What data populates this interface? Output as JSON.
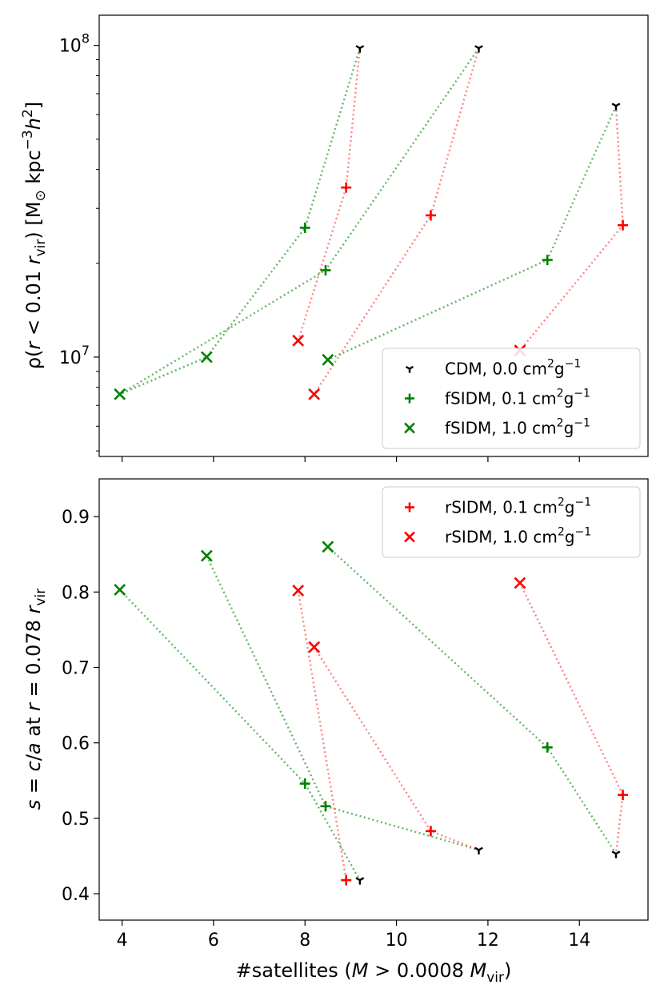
{
  "chart_data": [
    {
      "type": "line",
      "panel": "top",
      "ylabel_parts": {
        "p1": "ρ(",
        "r_var": "r",
        "p2": " < 0.01 ",
        "r2": "r",
        "sub": "vir",
        "p3": ") [M",
        "sun": "⊙",
        "p4": " kpc",
        "exp1": "−3",
        "h": "h",
        "exp2": "2",
        "p5": "]"
      },
      "yscale": "log",
      "ylim": [
        4800000,
        125000000
      ],
      "xlim": [
        3.5,
        15.5
      ],
      "yticks": [
        {
          "value": 10000000,
          "base": "10",
          "exp": "7"
        },
        {
          "value": 100000000,
          "base": "10",
          "exp": "8"
        }
      ],
      "lines": [
        {
          "color": "#2ca02c",
          "points": [
            [
              9.2,
              98000000
            ],
            [
              8.0,
              26000000
            ],
            [
              5.85,
              10000000
            ],
            [
              3.95,
              7600000
            ]
          ]
        },
        {
          "color": "#2ca02c",
          "points": [
            [
              11.8,
              98000000
            ],
            [
              8.45,
              19000000
            ],
            [
              3.95,
              7600000
            ]
          ]
        },
        {
          "color": "#2ca02c",
          "points": [
            [
              14.8,
              64000000
            ],
            [
              13.3,
              20500000
            ],
            [
              8.5,
              9800000
            ]
          ]
        },
        {
          "color": "#ff5a5a",
          "points": [
            [
              9.2,
              98000000
            ],
            [
              8.9,
              35000000
            ],
            [
              7.85,
              11300000
            ]
          ]
        },
        {
          "color": "#ff5a5a",
          "points": [
            [
              11.8,
              98000000
            ],
            [
              10.75,
              28500000
            ],
            [
              8.2,
              7600000
            ]
          ]
        },
        {
          "color": "#ff5a5a",
          "points": [
            [
              14.8,
              64000000
            ],
            [
              14.95,
              26500000
            ],
            [
              12.7,
              10500000
            ]
          ]
        }
      ],
      "series": [
        {
          "name": "CDM, 0.0 cm²g⁻¹",
          "marker": "tri",
          "color": "#000000",
          "points": [
            [
              9.2,
              98000000
            ],
            [
              11.8,
              98000000
            ],
            [
              14.8,
              64000000
            ]
          ]
        },
        {
          "name": "fSIDM, 0.1 cm²g⁻¹",
          "marker": "plus",
          "color": "#008000",
          "points": [
            [
              8.0,
              26000000
            ],
            [
              8.45,
              19000000
            ],
            [
              13.3,
              20500000
            ]
          ]
        },
        {
          "name": "fSIDM, 1.0 cm²g⁻¹",
          "marker": "x",
          "color": "#008000",
          "points": [
            [
              3.95,
              7600000
            ],
            [
              5.85,
              10000000
            ],
            [
              8.5,
              9800000
            ]
          ]
        },
        {
          "name": "rSIDM, 0.1 cm²g⁻¹",
          "marker": "plus",
          "color": "#ff0000",
          "points": [
            [
              8.9,
              35000000
            ],
            [
              10.75,
              28500000
            ],
            [
              14.95,
              26500000
            ]
          ]
        },
        {
          "name": "rSIDM, 1.0 cm²g⁻¹",
          "marker": "x",
          "color": "#ff0000",
          "points": [
            [
              7.85,
              11300000
            ],
            [
              8.2,
              7600000
            ],
            [
              12.7,
              10500000
            ]
          ]
        }
      ],
      "legend": {
        "location": "lower right",
        "entries": [
          {
            "marker": "tri",
            "color": "#000000",
            "label": "CDM, 0.0 cm",
            "exp1": "2",
            "mid": "g",
            "exp2": "−1"
          },
          {
            "marker": "plus",
            "color": "#008000",
            "label": "fSIDM, 0.1 cm",
            "exp1": "2",
            "mid": "g",
            "exp2": "−1"
          },
          {
            "marker": "x",
            "color": "#008000",
            "label": "fSIDM, 1.0 cm",
            "exp1": "2",
            "mid": "g",
            "exp2": "−1"
          }
        ]
      }
    },
    {
      "type": "line",
      "panel": "bottom",
      "ylabel_parts": {
        "s": "s",
        "eq1": " = ",
        "c": "c",
        "slash": "/",
        "a": "a",
        "at": " at ",
        "r": "r",
        "eq2": " = 0.078 ",
        "r2": "r",
        "sub": "vir"
      },
      "xlabel_parts": {
        "p1": "#satellites (",
        "M": "M",
        "p2": " > 0.0008 ",
        "M2": "M",
        "sub": "vir",
        "p3": ")"
      },
      "yscale": "linear",
      "ylim": [
        0.365,
        0.95
      ],
      "xlim": [
        3.5,
        15.5
      ],
      "yticks": [
        "0.4",
        "0.5",
        "0.6",
        "0.7",
        "0.8",
        "0.9"
      ],
      "xticks": [
        "4",
        "6",
        "8",
        "10",
        "12",
        "14"
      ],
      "lines": [
        {
          "color": "#2ca02c",
          "points": [
            [
              3.95,
              0.803
            ],
            [
              8.0,
              0.546
            ],
            [
              9.2,
              0.418
            ]
          ]
        },
        {
          "color": "#2ca02c",
          "points": [
            [
              5.85,
              0.848
            ],
            [
              8.45,
              0.516
            ],
            [
              11.8,
              0.458
            ]
          ]
        },
        {
          "color": "#2ca02c",
          "points": [
            [
              8.5,
              0.86
            ],
            [
              13.3,
              0.594
            ],
            [
              14.8,
              0.453
            ]
          ]
        },
        {
          "color": "#ff5a5a",
          "points": [
            [
              7.85,
              0.802
            ],
            [
              8.9,
              0.418
            ]
          ]
        },
        {
          "color": "#ff5a5a",
          "points": [
            [
              8.2,
              0.727
            ],
            [
              10.75,
              0.483
            ],
            [
              11.8,
              0.458
            ]
          ]
        },
        {
          "color": "#ff5a5a",
          "points": [
            [
              12.7,
              0.812
            ],
            [
              14.95,
              0.531
            ],
            [
              14.8,
              0.453
            ]
          ]
        }
      ],
      "series": [
        {
          "name": "CDM, 0.0 cm²g⁻¹",
          "marker": "tri",
          "color": "#000000",
          "points": [
            [
              9.2,
              0.418
            ],
            [
              11.8,
              0.458
            ],
            [
              14.8,
              0.453
            ]
          ]
        },
        {
          "name": "fSIDM, 0.1 cm²g⁻¹",
          "marker": "plus",
          "color": "#008000",
          "points": [
            [
              8.0,
              0.546
            ],
            [
              8.45,
              0.516
            ],
            [
              13.3,
              0.594
            ]
          ]
        },
        {
          "name": "fSIDM, 1.0 cm²g⁻¹",
          "marker": "x",
          "color": "#008000",
          "points": [
            [
              3.95,
              0.803
            ],
            [
              5.85,
              0.848
            ],
            [
              8.5,
              0.86
            ]
          ]
        },
        {
          "name": "rSIDM, 0.1 cm²g⁻¹",
          "marker": "plus",
          "color": "#ff0000",
          "points": [
            [
              8.9,
              0.418
            ],
            [
              10.75,
              0.483
            ],
            [
              14.95,
              0.531
            ]
          ]
        },
        {
          "name": "rSIDM, 1.0 cm²g⁻¹",
          "marker": "x",
          "color": "#ff0000",
          "points": [
            [
              7.85,
              0.802
            ],
            [
              8.2,
              0.727
            ],
            [
              12.7,
              0.812
            ]
          ]
        }
      ],
      "legend": {
        "location": "upper right",
        "entries": [
          {
            "marker": "plus",
            "color": "#ff0000",
            "label": "rSIDM, 0.1 cm",
            "exp1": "2",
            "mid": "g",
            "exp2": "−1"
          },
          {
            "marker": "x",
            "color": "#ff0000",
            "label": "rSIDM, 1.0 cm",
            "exp1": "2",
            "mid": "g",
            "exp2": "−1"
          }
        ]
      }
    }
  ]
}
